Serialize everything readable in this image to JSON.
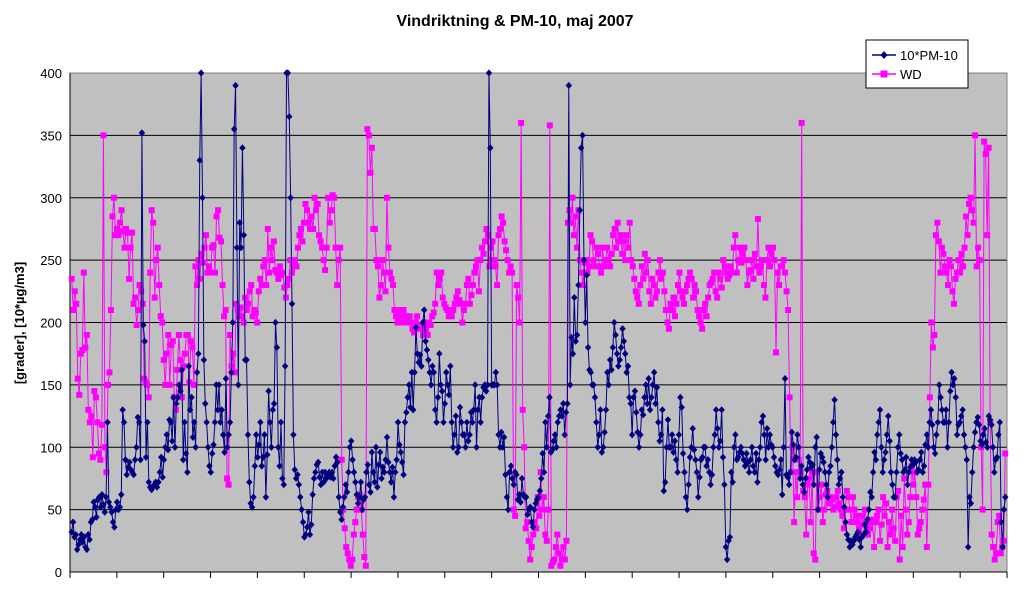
{
  "chart_data": {
    "type": "line",
    "title": "Vindriktning & PM-10, maj 2007",
    "ylabel": "[grader], [10*µg/m3]",
    "xlabel": "",
    "ylim": [
      0,
      400
    ],
    "yticks": [
      0,
      50,
      100,
      150,
      200,
      250,
      300,
      350,
      400
    ],
    "x_tick_count": 21,
    "grid": "horizontal",
    "plot_background": "#c0c0c0",
    "legend_placement": "top-right",
    "series": [
      {
        "name": "10*PM-10",
        "color": "#000080",
        "marker": "diamond",
        "values": [
          32,
          40,
          28,
          30,
          18,
          22,
          26,
          30,
          24,
          28,
          20,
          18,
          30,
          26,
          40,
          42,
          56,
          52,
          44,
          58,
          60,
          52,
          62,
          54,
          48,
          60,
          120,
          56,
          52,
          48,
          40,
          36,
          50,
          56,
          50,
          52,
          62,
          130,
          120,
          90,
          78,
          84,
          88,
          82,
          80,
          78,
          90,
          100,
          124,
          120,
          90,
          352,
          198,
          185,
          92,
          120,
          72,
          68,
          66,
          68,
          70,
          72,
          68,
          72,
          80,
          92,
          76,
          90,
          100,
          110,
          98,
          122,
          120,
          105,
          140,
          100,
          135,
          140,
          150,
          145,
          162,
          90,
          120,
          95,
          80,
          165,
          130,
          140,
          108,
          120,
          100,
          160,
          175,
          330,
          400,
          300,
          170,
          135,
          120,
          100,
          85,
          80,
          95,
          102,
          120,
          150,
          130,
          150,
          120,
          130,
          110,
          96,
          155,
          100,
          110,
          120,
          160,
          200,
          355,
          390,
          260,
          150,
          280,
          260,
          340,
          270,
          170,
          170,
          110,
          72,
          55,
          52,
          60,
          85,
          110,
          92,
          102,
          120,
          85,
          92,
          110,
          60,
          94,
          145,
          120,
          100,
          130,
          135,
          200,
          180,
          100,
          85,
          120,
          75,
          70,
          165,
          400,
          400,
          365,
          300,
          215,
          110,
          82,
          75,
          78,
          70,
          60,
          50,
          40,
          28,
          30,
          36,
          48,
          30,
          38,
          62,
          75,
          80,
          86,
          88,
          76,
          70,
          80,
          72,
          80,
          75,
          78,
          80,
          76,
          80,
          75,
          85,
          92,
          88,
          60,
          48,
          42,
          52,
          60,
          70,
          64,
          80,
          100,
          105,
          90,
          80,
          72,
          62,
          55,
          60,
          72,
          50,
          58,
          60,
          80,
          86,
          70,
          64,
          96,
          80,
          72,
          100,
          68,
          86,
          96,
          75,
          84,
          80,
          90,
          108,
          88,
          80,
          72,
          84,
          60,
          80,
          90,
          120,
          102,
          96,
          88,
          78,
          120,
          128,
          140,
          150,
          132,
          160,
          130,
          160,
          196,
          175,
          168,
          174,
          165,
          200,
          210,
          185,
          178,
          170,
          160,
          150,
          165,
          160,
          130,
          120,
          140,
          175,
          150,
          145,
          120,
          135,
          160,
          150,
          142,
          165,
          120,
          100,
          110,
          125,
          96,
          100,
          132,
          120,
          110,
          110,
          100,
          120,
          105,
          110,
          128,
          120,
          130,
          150,
          100,
          130,
          140,
          120,
          140,
          148,
          150,
          145,
          150,
          400,
          340,
          150,
          150,
          150,
          160,
          150,
          110,
          100,
          112,
          100,
          108,
          78,
          60,
          50,
          80,
          85,
          75,
          70,
          80,
          78,
          58,
          62,
          56,
          75,
          62,
          60,
          60,
          46,
          50,
          52,
          40,
          36,
          50,
          55,
          58,
          60,
          65,
          75,
          95,
          80,
          120,
          100,
          125,
          140,
          96,
          98,
          105,
          110,
          100,
          120,
          125,
          130,
          125,
          135,
          110,
          128,
          135,
          390,
          150,
          188,
          175,
          220,
          185,
          190,
          230,
          290,
          340,
          350,
          250,
          200,
          238,
          180,
          162,
          160,
          150,
          150,
          140,
          120,
          100,
          110,
          130,
          96,
          100,
          112,
          130,
          160,
          150,
          170,
          162,
          180,
          200,
          190,
          175,
          165,
          170,
          180,
          195,
          185,
          175,
          160,
          165,
          140,
          135,
          110,
          140,
          145,
          128,
          112,
          100,
          110,
          130,
          126,
          140,
          150,
          135,
          155,
          130,
          140,
          150,
          160,
          135,
          148,
          120,
          105,
          110,
          130,
          65,
          72,
          100,
          122,
          100,
          100,
          110,
          96,
          105,
          90,
          80,
          110,
          140,
          132,
          95,
          80,
          60,
          50,
          70,
          92,
          100,
          115,
          98,
          90,
          80,
          60,
          76,
          90,
          92,
          100,
          100,
          85,
          90,
          80,
          70,
          78,
          100,
          110,
          130,
          115,
          100,
          105,
          130,
          92,
          70,
          20,
          10,
          25,
          28,
          80,
          72,
          100,
          110,
          90,
          92,
          96,
          100,
          95,
          90,
          85,
          95,
          88,
          80,
          90,
          100,
          85,
          80,
          95,
          72,
          90,
          100,
          120,
          125,
          110,
          90,
          115,
          100,
          110,
          102,
          100,
          92,
          85,
          80,
          78,
          82,
          90,
          62,
          100,
          155,
          78,
          76,
          70,
          80,
          112,
          102,
          90,
          92,
          110,
          100,
          75,
          85,
          70,
          64,
          75,
          82,
          92,
          88,
          84,
          86,
          70,
          100,
          108,
          50,
          82,
          95,
          92,
          88,
          80,
          70,
          60,
          80,
          85,
          100,
          120,
          138,
          110,
          90,
          70,
          75,
          80,
          60,
          52,
          40,
          30,
          26,
          20,
          25,
          22,
          25,
          28,
          30,
          32,
          26,
          20,
          28,
          30,
          38,
          32,
          42,
          50,
          64,
          60,
          80,
          96,
          90,
          110,
          120,
          130,
          100,
          80,
          90,
          96,
          110,
          125,
          105,
          80,
          70,
          60,
          60,
          80,
          100,
          110,
          95,
          90,
          80,
          82,
          92,
          70,
          80,
          84,
          90,
          86,
          90,
          88,
          80,
          82,
          90,
          96,
          80,
          85,
          102,
          110,
          100,
          120,
          130,
          118,
          100,
          95,
          110,
          120,
          150,
          140,
          130,
          120,
          120,
          130,
          100,
          120,
          145,
          160,
          150,
          155,
          140,
          110,
          118,
          120,
          125,
          130,
          110,
          100,
          90,
          20,
          60,
          55,
          80,
          100,
          112,
          120,
          124,
          118,
          105,
          102,
          110,
          115,
          104,
          100,
          125,
          122,
          118,
          100,
          80,
          90,
          92,
          110,
          120,
          40,
          20,
          50,
          60
        ]
      },
      {
        "name": "WD",
        "color": "#ff00ff",
        "marker": "square",
        "values": [
          235,
          210,
          225,
          215,
          155,
          142,
          175,
          178,
          240,
          180,
          190,
          130,
          120,
          125,
          92,
          145,
          140,
          120,
          95,
          90,
          118,
          350,
          100,
          80,
          150,
          160,
          210,
          285,
          300,
          270,
          275,
          270,
          280,
          290,
          273,
          260,
          275,
          272,
          235,
          260,
          272,
          215,
          220,
          198,
          210,
          230,
          225,
          215,
          155,
          152,
          150,
          140,
          240,
          290,
          280,
          220,
          250,
          260,
          230,
          205,
          200,
          170,
          150,
          175,
          190,
          150,
          182,
          185,
          140,
          130,
          162,
          190,
          170,
          140,
          165,
          175,
          190,
          190,
          152,
          185,
          180,
          150,
          245,
          230,
          250,
          235,
          255,
          248,
          260,
          270,
          240,
          245,
          240,
          260,
          262,
          240,
          285,
          290,
          268,
          265,
          230,
          205,
          210,
          75,
          70,
          190,
          165,
          175,
          160,
          215,
          210,
          205,
          212,
          205,
          200,
          220,
          210,
          215,
          225,
          230,
          205,
          210,
          208,
          200,
          225,
          235,
          230,
          245,
          250,
          230,
          275,
          240,
          260,
          250,
          265,
          242,
          240,
          235,
          245,
          238,
          240,
          228,
          220,
          230,
          235,
          250,
          240,
          245,
          250,
          245,
          260,
          270,
          275,
          265,
          280,
          295,
          290,
          280,
          275,
          285,
          275,
          300,
          290,
          295,
          270,
          265,
          260,
          250,
          242,
          260,
          300,
          280,
          290,
          302,
          300,
          260,
          230,
          250,
          260,
          90,
          50,
          35,
          20,
          15,
          10,
          5,
          10,
          30,
          40,
          50,
          60,
          62,
          50,
          30,
          12,
          5,
          355,
          350,
          320,
          340,
          275,
          275,
          250,
          245,
          220,
          230,
          250,
          240,
          225,
          300,
          260,
          240,
          235,
          230,
          210,
          205,
          200,
          205,
          210,
          200,
          210,
          205,
          205,
          200,
          205,
          200,
          195,
          192,
          200,
          205,
          195,
          198,
          195,
          190,
          200,
          195,
          190,
          200,
          198,
          205,
          208,
          215,
          240,
          230,
          235,
          240,
          220,
          215,
          212,
          210,
          205,
          210,
          205,
          210,
          215,
          220,
          225,
          218,
          215,
          200,
          210,
          215,
          230,
          235,
          215,
          222,
          230,
          240,
          245,
          250,
          225,
          250,
          260,
          255,
          265,
          275,
          270,
          245,
          260,
          265,
          250,
          245,
          230,
          270,
          275,
          285,
          280,
          265,
          258,
          250,
          240,
          245,
          240,
          50,
          45,
          230,
          220,
          200,
          360,
          130,
          100,
          35,
          40,
          25,
          10,
          20,
          30,
          40,
          35,
          60,
          45,
          80,
          50,
          60,
          30,
          25,
          50,
          358,
          5,
          8,
          10,
          20,
          30,
          15,
          5,
          10,
          20,
          10,
          25,
          280,
          290,
          280,
          300,
          270,
          285,
          260,
          290,
          250,
          240,
          230,
          248,
          250,
          240,
          245,
          270,
          265,
          250,
          245,
          260,
          255,
          245,
          240,
          260,
          245,
          250,
          260,
          250,
          245,
          255,
          270,
          275,
          260,
          280,
          265,
          270,
          255,
          265,
          250,
          270,
          260,
          280,
          250,
          245,
          235,
          225,
          220,
          215,
          230,
          245,
          235,
          255,
          240,
          250,
          225,
          215,
          235,
          230,
          220,
          225,
          240,
          250,
          235,
          240,
          225,
          210,
          200,
          195,
          215,
          210,
          220,
          205,
          215,
          230,
          240,
          225,
          220,
          215,
          225,
          230,
          235,
          240,
          235,
          220,
          230,
          225,
          210,
          205,
          200,
          195,
          210,
          215,
          205,
          220,
          230,
          232,
          235,
          240,
          225,
          220,
          240,
          235,
          228,
          250,
          245,
          240,
          235,
          238,
          245,
          240,
          260,
          270,
          240,
          250,
          260,
          248,
          255,
          260,
          250,
          230,
          240,
          242,
          250,
          235,
          255,
          245,
          283,
          240,
          245,
          250,
          230,
          220,
          250,
          260,
          245,
          255,
          260,
          250,
          176,
          240,
          230,
          245,
          245,
          250,
          240,
          225,
          210,
          140,
          80,
          100,
          40,
          80,
          60,
          90,
          80,
          360,
          65,
          60,
          30,
          70,
          75,
          40,
          80,
          15,
          10,
          80,
          50,
          60,
          70,
          40,
          50,
          62,
          65,
          55,
          60,
          58,
          50,
          52,
          60,
          65,
          55,
          50,
          45,
          35,
          50,
          65,
          60,
          50,
          40,
          60,
          50,
          45,
          40,
          35,
          30,
          45,
          38,
          50,
          40,
          30,
          35,
          42,
          40,
          20,
          40,
          45,
          50,
          25,
          38,
          60,
          45,
          55,
          20,
          40,
          30,
          50,
          35,
          25,
          60,
          65,
          10,
          45,
          20,
          75,
          50,
          30,
          40,
          60,
          85,
          70,
          80,
          60,
          30,
          35,
          40,
          50,
          58,
          70,
          20,
          70,
          140,
          200,
          180,
          190,
          270,
          280,
          265,
          240,
          260,
          255,
          245,
          240,
          230,
          250,
          245,
          225,
          215,
          235,
          240,
          250,
          240,
          255,
          245,
          260,
          285,
          270,
          295,
          300,
          290,
          280,
          350,
          245,
          260,
          250,
          100,
          50,
          345,
          335,
          270,
          340,
          120,
          30,
          20,
          10,
          15,
          40,
          45,
          15,
          20,
          25,
          95
        ]
      }
    ]
  }
}
